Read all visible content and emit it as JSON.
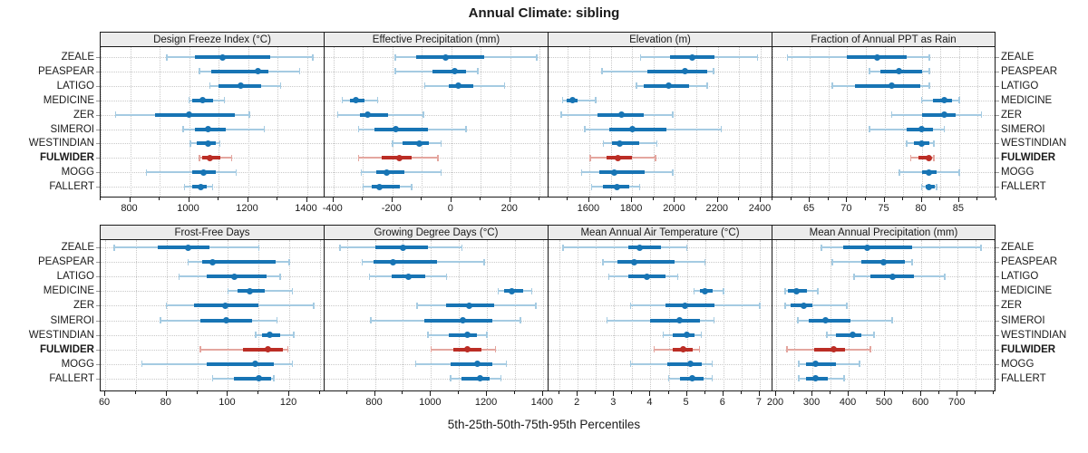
{
  "title": "Annual Climate: sibling",
  "caption": "5th-25th-50th-75th-95th Percentiles",
  "colors": {
    "blue": "#1774b4",
    "blue_light": "#a5cbe2",
    "red": "#bb2d25",
    "red_light": "#e4a69f",
    "header_bg": "#ececec",
    "border": "#1a1a1a",
    "grid": "#c9c9c9",
    "side_tick": "#999999"
  },
  "chart_data": {
    "type": "dot-interval",
    "percentiles": [
      5,
      25,
      50,
      75,
      95
    ],
    "legend_note": "thin line = 5th-95th, thick bar = 25th-75th, dot = 50th percentile",
    "rows": [
      "ZEALE",
      "PEASPEAR",
      "LATIGO",
      "MEDICINE",
      "ZER",
      "SIMEROI",
      "WESTINDIAN",
      "FULWIDER",
      "MOGG",
      "FALLERT"
    ],
    "highlight_row": "FULWIDER",
    "panels": [
      {
        "title": "Design Freeze Index (°C)",
        "xlim": [
          700,
          1460
        ],
        "ticks": [
          800,
          1000,
          1200,
          1400
        ],
        "grid_step": 100,
        "values": {
          "ZEALE": [
            925,
            1020,
            1115,
            1275,
            1420
          ],
          "PEASPEAR": [
            1035,
            1075,
            1235,
            1270,
            1375
          ],
          "LATIGO": [
            1070,
            1100,
            1175,
            1245,
            1310
          ],
          "MEDICINE": [
            1000,
            1010,
            1045,
            1080,
            1120
          ],
          "ZER": [
            750,
            885,
            1000,
            1155,
            1205
          ],
          "SIMEROI": [
            980,
            1020,
            1065,
            1125,
            1255
          ],
          "WESTINDIAN": [
            1005,
            1025,
            1065,
            1090,
            1105
          ],
          "FULWIDER": [
            1035,
            1045,
            1070,
            1105,
            1145
          ],
          "MOGG": [
            855,
            1010,
            1050,
            1090,
            1160
          ],
          "FALLERT": [
            985,
            1010,
            1040,
            1060,
            1080
          ]
        }
      },
      {
        "title": "Effective Precipitation (mm)",
        "xlim": [
          -430,
          330
        ],
        "ticks": [
          -400,
          -200,
          0,
          200
        ],
        "grid_step": 100,
        "values": {
          "ZEALE": [
            -190,
            -120,
            -20,
            110,
            290
          ],
          "PEASPEAR": [
            -190,
            -65,
            10,
            50,
            90
          ],
          "LATIGO": [
            -90,
            -10,
            25,
            75,
            180
          ],
          "MEDICINE": [
            -370,
            -345,
            -325,
            -295,
            -250
          ],
          "ZER": [
            -385,
            -310,
            -285,
            -215,
            -95
          ],
          "SIMEROI": [
            -315,
            -260,
            -190,
            -80,
            50
          ],
          "WESTINDIAN": [
            -200,
            -165,
            -110,
            -75,
            -35
          ],
          "FULWIDER": [
            -315,
            -235,
            -175,
            -135,
            -45
          ],
          "MOGG": [
            -305,
            -255,
            -220,
            -160,
            -35
          ],
          "FALLERT": [
            -300,
            -270,
            -245,
            -175,
            -135
          ]
        }
      },
      {
        "title": "Elevation (m)",
        "xlim": [
          1410,
          2455
        ],
        "ticks": [
          1600,
          1800,
          2000,
          2200,
          2400
        ],
        "grid_step": 100,
        "values": {
          "ZEALE": [
            1840,
            1975,
            2080,
            2185,
            2385
          ],
          "PEASPEAR": [
            1660,
            1870,
            2045,
            2150,
            2180
          ],
          "LATIGO": [
            1820,
            1855,
            1970,
            2065,
            2150
          ],
          "MEDICINE": [
            1475,
            1495,
            1520,
            1545,
            1630
          ],
          "ZER": [
            1470,
            1640,
            1750,
            1855,
            1990
          ],
          "SIMEROI": [
            1580,
            1695,
            1800,
            1960,
            2215
          ],
          "WESTINDIAN": [
            1665,
            1705,
            1740,
            1835,
            1915
          ],
          "FULWIDER": [
            1605,
            1680,
            1735,
            1800,
            1910
          ],
          "MOGG": [
            1565,
            1645,
            1715,
            1860,
            1990
          ],
          "FALLERT": [
            1610,
            1665,
            1730,
            1785,
            1835
          ]
        }
      },
      {
        "title": "Fraction of Annual PPT as Rain",
        "xlim": [
          60,
          90
        ],
        "ticks": [
          65,
          70,
          75,
          80,
          85
        ],
        "grid_step": 2.5,
        "values": {
          "ZEALE": [
            62,
            70,
            74,
            78,
            81
          ],
          "PEASPEAR": [
            73,
            74.5,
            77,
            80,
            81
          ],
          "LATIGO": [
            68,
            71,
            76,
            79.8,
            81
          ],
          "MEDICINE": [
            80,
            81.5,
            83,
            84,
            85
          ],
          "ZER": [
            76,
            80,
            83,
            84.5,
            88
          ],
          "SIMEROI": [
            73,
            78,
            80,
            81.5,
            83
          ],
          "WESTINDIAN": [
            78,
            79,
            80,
            81,
            81.6
          ],
          "FULWIDER": [
            78.5,
            79.5,
            81,
            81.3,
            81.6
          ],
          "MOGG": [
            77,
            80,
            81,
            82,
            85
          ],
          "FALLERT": [
            80,
            80.5,
            81,
            81.8,
            82
          ]
        }
      },
      {
        "title": "Frost-Free Days",
        "xlim": [
          58.5,
          131.5
        ],
        "ticks": [
          60,
          80,
          100,
          120
        ],
        "grid_step": 10,
        "values": {
          "ZEALE": [
            63,
            77,
            87,
            94,
            110
          ],
          "PEASPEAR": [
            87,
            91.5,
            95,
            115.5,
            120
          ],
          "LATIGO": [
            84,
            93,
            102,
            112.5,
            117
          ],
          "MEDICINE": [
            100,
            103,
            107,
            112,
            121
          ],
          "ZER": [
            80,
            89,
            99,
            110,
            128
          ],
          "SIMEROI": [
            78,
            91,
            99.5,
            108,
            116
          ],
          "WESTINDIAN": [
            109,
            111,
            113.5,
            117,
            121.5
          ],
          "FULWIDER": [
            91,
            105,
            113,
            118,
            119.5
          ],
          "MOGG": [
            72,
            93,
            109,
            115,
            121
          ],
          "FALLERT": [
            95,
            102,
            110,
            114,
            115
          ]
        }
      },
      {
        "title": "Growing Degree Days (°C)",
        "xlim": [
          620,
          1420
        ],
        "ticks": [
          800,
          1000,
          1200,
          1400
        ],
        "grid_step": 100,
        "values": {
          "ZEALE": [
            675,
            800,
            900,
            990,
            1110
          ],
          "PEASPEAR": [
            755,
            795,
            865,
            1020,
            1190
          ],
          "LATIGO": [
            780,
            860,
            920,
            980,
            1055
          ],
          "MEDICINE": [
            1240,
            1260,
            1290,
            1330,
            1360
          ],
          "ZER": [
            950,
            1055,
            1135,
            1225,
            1375
          ],
          "SIMEROI": [
            785,
            975,
            1115,
            1220,
            1320
          ],
          "WESTINDIAN": [
            990,
            1065,
            1130,
            1165,
            1200
          ],
          "FULWIDER": [
            1000,
            1080,
            1130,
            1180,
            1230
          ],
          "MOGG": [
            945,
            1070,
            1165,
            1220,
            1270
          ],
          "FALLERT": [
            1070,
            1110,
            1175,
            1210,
            1250
          ]
        }
      },
      {
        "title": "Mean Annual Air Temperature (°C)",
        "xlim": [
          1.2,
          7.35
        ],
        "ticks": [
          2,
          3,
          4,
          5,
          6,
          7
        ],
        "grid_step": 0.5,
        "values": {
          "ZEALE": [
            1.6,
            3.4,
            3.7,
            4.3,
            5.0
          ],
          "PEASPEAR": [
            2.7,
            3.1,
            3.55,
            4.65,
            5.5
          ],
          "LATIGO": [
            2.85,
            3.4,
            3.9,
            4.4,
            4.75
          ],
          "MEDICINE": [
            5.2,
            5.35,
            5.5,
            5.7,
            6.0
          ],
          "ZER": [
            3.45,
            4.4,
            4.95,
            5.75,
            7.0
          ],
          "SIMEROI": [
            2.8,
            4.0,
            4.8,
            5.35,
            5.75
          ],
          "WESTINDIAN": [
            4.35,
            4.6,
            5.0,
            5.2,
            5.4
          ],
          "FULWIDER": [
            4.1,
            4.6,
            4.9,
            5.15,
            5.35
          ],
          "MOGG": [
            3.45,
            4.45,
            5.1,
            5.4,
            5.7
          ],
          "FALLERT": [
            4.5,
            4.8,
            5.15,
            5.45,
            5.7
          ]
        }
      },
      {
        "title": "Mean Annual Precipitation (mm)",
        "xlim": [
          190,
          807
        ],
        "ticks": [
          200,
          300,
          400,
          500,
          600,
          700
        ],
        "grid_step": 50,
        "values": {
          "ZEALE": [
            325,
            385,
            450,
            575,
            765
          ],
          "PEASPEAR": [
            355,
            435,
            495,
            555,
            575
          ],
          "LATIGO": [
            415,
            460,
            520,
            580,
            665
          ],
          "MEDICINE": [
            225,
            233,
            255,
            285,
            315
          ],
          "ZER": [
            225,
            240,
            277,
            300,
            395
          ],
          "SIMEROI": [
            260,
            290,
            335,
            405,
            520
          ],
          "WESTINDIAN": [
            340,
            365,
            410,
            435,
            470
          ],
          "FULWIDER": [
            230,
            305,
            358,
            390,
            460
          ],
          "MOGG": [
            262,
            283,
            308,
            365,
            430
          ],
          "FALLERT": [
            262,
            282,
            308,
            342,
            387
          ]
        }
      }
    ]
  }
}
